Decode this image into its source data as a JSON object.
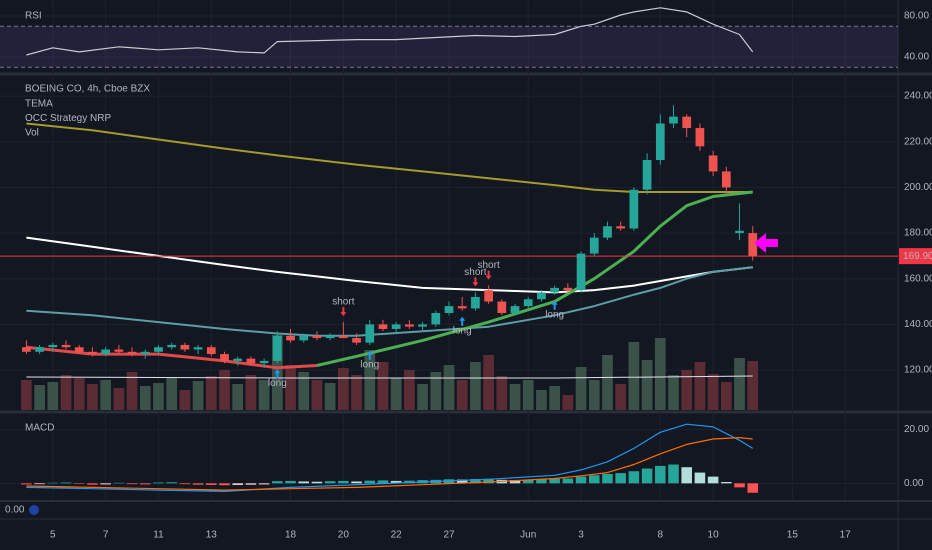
{
  "x_axis": {
    "xlim": [
      -2,
      66
    ],
    "xticks": [
      {
        "value": 2,
        "label": "5"
      },
      {
        "value": 6,
        "label": "7"
      },
      {
        "value": 10,
        "label": "11"
      },
      {
        "value": 14,
        "label": "13"
      },
      {
        "value": 20,
        "label": "18"
      },
      {
        "value": 24,
        "label": "20"
      },
      {
        "value": 28,
        "label": "22"
      },
      {
        "value": 32,
        "label": "27"
      },
      {
        "value": 38,
        "label": "Jun"
      },
      {
        "value": 42,
        "label": "3"
      },
      {
        "value": 48,
        "label": "8"
      },
      {
        "value": 52,
        "label": "10"
      },
      {
        "value": 58,
        "label": "15"
      },
      {
        "value": 62,
        "label": "17"
      }
    ]
  },
  "chart_data": [
    {
      "type": "rsi",
      "title": "RSI",
      "ylim": [
        25.4,
        95.6
      ],
      "yticks": [
        {
          "value": 80,
          "label": "80.00"
        },
        {
          "value": 40,
          "label": "40.00"
        }
      ],
      "levels": [
        70,
        30
      ],
      "band_color": "rgba(126,87,194,0.15)",
      "x": [
        0,
        2,
        4,
        7,
        10,
        13,
        16,
        18,
        19,
        22,
        25,
        28,
        31,
        34,
        37,
        40,
        42,
        43,
        45,
        46,
        48,
        50,
        52,
        54,
        55
      ],
      "series": [
        {
          "color": "#c9cbd2",
          "values": [
            42,
            49,
            45,
            50,
            47,
            49,
            45,
            44,
            55,
            56,
            57,
            57,
            59,
            61,
            60,
            62,
            70,
            72,
            81,
            84,
            88,
            84,
            72,
            62,
            45
          ]
        }
      ]
    },
    {
      "type": "candlestick",
      "title": "BOEING CO, 4h, Cboe BZX",
      "legend": [
        "TEMA",
        "OCC Strategy NRP",
        "Vol"
      ],
      "ylim": [
        102.5,
        248.8
      ],
      "yticks": [
        {
          "value": 240,
          "label": "240.00"
        },
        {
          "value": 220,
          "label": "220.00"
        },
        {
          "value": 200,
          "label": "200.00"
        },
        {
          "value": 180,
          "label": "180.00"
        },
        {
          "value": 160,
          "label": "160.00"
        },
        {
          "value": 140,
          "label": "140.00"
        },
        {
          "value": 120,
          "label": "120.00"
        }
      ],
      "up_color": "#26a69a",
      "down_color": "#ef5350",
      "open": [
        130,
        128,
        130,
        131,
        130,
        128,
        127,
        129,
        128,
        127,
        128,
        130,
        131,
        129,
        130,
        127,
        124,
        125,
        123,
        124,
        135,
        133,
        135,
        134,
        135,
        134,
        132,
        140,
        138,
        140,
        139,
        140,
        145,
        148,
        147,
        155,
        150,
        145,
        148,
        151,
        154,
        156,
        155,
        171,
        178,
        183,
        182,
        199,
        212,
        228,
        231,
        226,
        214,
        207,
        180,
        180
      ],
      "high": [
        133,
        131,
        132,
        133,
        131,
        130,
        130,
        131,
        130,
        129,
        131,
        132,
        132,
        131,
        131,
        128,
        126,
        126,
        125,
        137,
        138,
        136,
        137,
        136,
        141,
        136,
        142,
        142,
        141,
        142,
        141,
        146,
        150,
        152,
        154,
        157,
        151,
        149,
        152,
        155,
        157,
        158,
        172,
        180,
        185,
        185,
        200,
        215,
        232,
        236,
        232,
        228,
        216,
        209,
        193,
        183
      ],
      "low": [
        127,
        127,
        128,
        129,
        127,
        126,
        126,
        127,
        126,
        125,
        127,
        129,
        128,
        127,
        126,
        123,
        122,
        122,
        121,
        123,
        132,
        132,
        133,
        133,
        134,
        131,
        131,
        137,
        136,
        138,
        137,
        139,
        144,
        146,
        146,
        149,
        144,
        144,
        147,
        150,
        153,
        154,
        154,
        170,
        177,
        181,
        181,
        197,
        210,
        226,
        222,
        216,
        205,
        197,
        177,
        168
      ],
      "close": [
        128,
        130,
        131,
        130,
        128,
        127,
        129,
        128,
        127,
        128,
        130,
        131,
        129,
        130,
        127,
        124,
        125,
        123,
        124,
        135,
        133,
        135,
        134,
        135,
        134,
        132,
        140,
        138,
        140,
        139,
        140,
        145,
        148,
        147,
        152,
        150,
        145,
        148,
        151,
        154,
        156,
        155,
        171,
        178,
        183,
        182,
        199,
        212,
        228,
        231,
        226,
        218,
        207,
        200,
        181,
        170
      ],
      "lines": [
        {
          "color": "#a59a2c",
          "x": [
            0,
            5,
            10,
            15,
            19,
            22,
            25,
            30,
            35,
            40,
            43,
            46,
            48,
            50,
            52,
            55
          ],
          "values": [
            228,
            225,
            221,
            217,
            214,
            212,
            210,
            207,
            204,
            201,
            199,
            198,
            198,
            198,
            198,
            198
          ]
        },
        {
          "color": "#ffffff",
          "x": [
            0,
            5,
            10,
            15,
            19,
            22,
            25,
            30,
            35,
            40,
            43,
            46,
            48,
            50,
            52,
            55
          ],
          "values": [
            178,
            174,
            170,
            166,
            163,
            161,
            159,
            156,
            155,
            154,
            155,
            157,
            159,
            161,
            163,
            165
          ]
        },
        {
          "color": "#5b9ea6",
          "x": [
            0,
            5,
            10,
            15,
            19,
            22,
            25,
            30,
            35,
            40,
            43,
            46,
            48,
            50,
            52,
            55
          ],
          "values": [
            146,
            144,
            141,
            138,
            136,
            135,
            135,
            137,
            139,
            144,
            148,
            153,
            156,
            160,
            163,
            165
          ]
        },
        {
          "color": "#e04a4a",
          "x": [
            0,
            5,
            10,
            15,
            19,
            22
          ],
          "values": [
            130,
            127,
            127,
            124,
            121,
            122
          ]
        },
        {
          "color": "#4caf50",
          "x": [
            22,
            25,
            30,
            35,
            40,
            43,
            46,
            48,
            50,
            52,
            55
          ],
          "values": [
            122,
            126,
            133,
            141,
            150,
            160,
            172,
            183,
            192,
            196,
            198
          ]
        }
      ],
      "price_line": {
        "value": 169.9,
        "label": "169.90",
        "color": "#f23645"
      },
      "volume": {
        "y2lim": [
          0,
          33.4
        ],
        "up_color": "#3b5249",
        "down_color": "#5b2c34",
        "values": [
          3.0,
          2.5,
          2.8,
          3.5,
          3.2,
          2.6,
          3.0,
          2.2,
          3.8,
          2.4,
          2.7,
          3.2,
          2.0,
          2.9,
          3.4,
          4.0,
          2.6,
          3.5,
          3.0,
          7.5,
          4.5,
          3.8,
          3.0,
          2.7,
          4.2,
          3.5,
          6.0,
          4.8,
          3.2,
          4.0,
          2.6,
          3.8,
          4.5,
          3.0,
          4.8,
          5.5,
          3.4,
          2.6,
          3.0,
          2.0,
          2.4,
          1.5,
          4.3,
          3.0,
          5.5,
          2.6,
          6.8,
          5.0,
          7.2,
          3.5,
          4.0,
          4.8,
          3.6,
          2.8,
          5.2,
          4.9
        ],
        "ma": {
          "color": "#e0e3eb",
          "x": [
            0,
            20,
            40,
            55
          ],
          "values": [
            3.3,
            3.2,
            3.2,
            3.4
          ]
        }
      },
      "annotations": [
        {
          "text": "short",
          "x": 24,
          "color": "#f23645"
        },
        {
          "text": "short",
          "x": 34,
          "color": "#f23645"
        },
        {
          "text": "short",
          "x": 35,
          "color": "#f23645"
        },
        {
          "text": "long",
          "x": 19,
          "color": "#2196f3"
        },
        {
          "text": "long",
          "x": 26,
          "color": "#2196f3"
        },
        {
          "text": "long",
          "x": 33,
          "color": "#2196f3"
        },
        {
          "text": "long",
          "x": 40,
          "color": "#2196f3"
        }
      ]
    },
    {
      "type": "macd",
      "title": "MACD",
      "ylim": [
        -6.2,
        25.8
      ],
      "yticks": [
        {
          "value": 20,
          "label": "20.00"
        },
        {
          "value": 0,
          "label": "0.00"
        }
      ],
      "colors": {
        "up_rising": "#26a69a",
        "up_falling": "#b2dfdb",
        "down_falling": "#ff5252",
        "down_rising": "#ffcdd2"
      },
      "histogram": [
        -0.4,
        -0.3,
        0.2,
        0.3,
        -0.2,
        -0.5,
        -0.4,
        0.2,
        -0.3,
        -0.4,
        0.3,
        0.4,
        -0.3,
        -0.5,
        -0.6,
        -0.7,
        -0.6,
        -0.5,
        -0.4,
        0.8,
        0.9,
        0.7,
        0.6,
        0.8,
        0.9,
        0.7,
        1.0,
        1.1,
        0.9,
        1.0,
        1.2,
        1.3,
        1.5,
        1.4,
        1.6,
        1.7,
        1.3,
        1.2,
        1.4,
        1.5,
        1.7,
        1.8,
        2.5,
        3.0,
        3.5,
        3.8,
        4.5,
        5.5,
        6.5,
        7.0,
        6.0,
        4.0,
        2.5,
        0.5,
        -1.5,
        -3.5
      ],
      "x": [
        0,
        5,
        10,
        15,
        20,
        25,
        30,
        35,
        40,
        42,
        44,
        46,
        48,
        50,
        52,
        54,
        55
      ],
      "series": [
        {
          "color": "#2196f3",
          "values": [
            -1.5,
            -2,
            -2.5,
            -3,
            -1.5,
            -0.5,
            0.5,
            1.5,
            3,
            5,
            8,
            13,
            19,
            22,
            21,
            16,
            13
          ]
        },
        {
          "color": "#ff6d00",
          "values": [
            -1,
            -1.5,
            -2,
            -2.5,
            -2,
            -1.5,
            -0.5,
            0.5,
            1.8,
            2.8,
            4,
            7,
            11,
            14.5,
            16.5,
            17,
            16.5
          ]
        }
      ]
    }
  ],
  "footer_value": "0.00"
}
